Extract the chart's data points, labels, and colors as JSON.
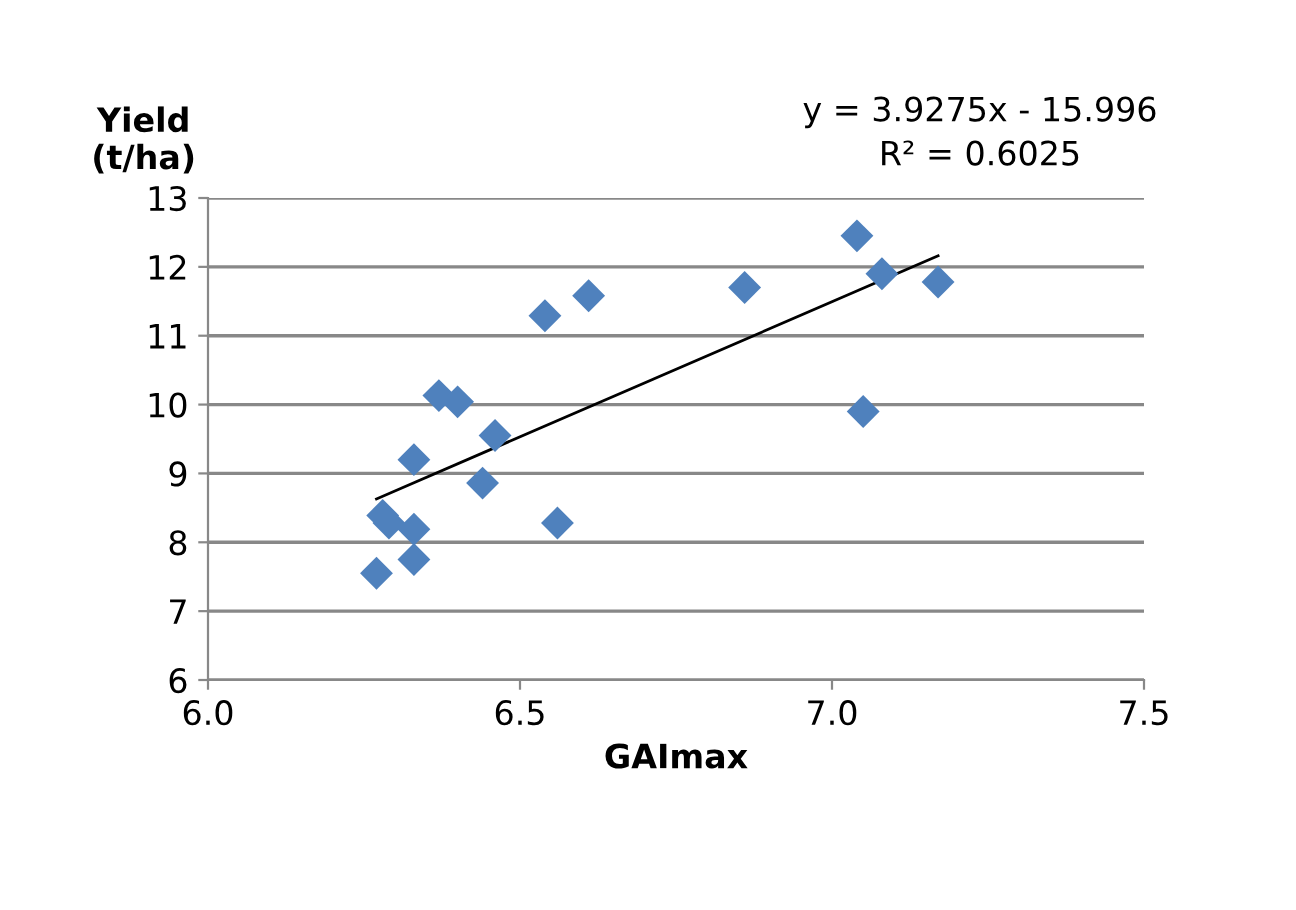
{
  "chart_data": {
    "type": "scatter",
    "xlabel": "GAImax",
    "ylabel": "Yield\n(t/ha)",
    "xlim": [
      6.0,
      7.5
    ],
    "xticks": [
      {
        "value": 6.0,
        "label": "6.0"
      },
      {
        "value": 6.5,
        "label": "6.5"
      },
      {
        "value": 7.0,
        "label": "7.0"
      },
      {
        "value": 7.5,
        "label": "7.5"
      }
    ],
    "ylim": [
      6,
      13
    ],
    "yticks": [
      6,
      7,
      8,
      9,
      10,
      11,
      12,
      13
    ],
    "grid": "y",
    "marker": "diamond",
    "series": [
      {
        "color": "#4f81bd",
        "x": [
          6.27,
          6.28,
          6.29,
          6.33,
          6.33,
          6.33,
          6.37,
          6.4,
          6.44,
          6.46,
          6.54,
          6.56,
          6.61,
          6.86,
          7.04,
          7.05,
          7.08,
          7.17
        ],
        "values": [
          7.55,
          8.39,
          8.28,
          8.19,
          7.75,
          9.2,
          10.13,
          10.04,
          8.86,
          9.55,
          11.29,
          8.28,
          11.58,
          11.7,
          12.45,
          9.9,
          11.9,
          11.78
        ]
      },
      {
        "type": "line",
        "color": "#000000",
        "marker": "none",
        "x": [
          6.27,
          7.17
        ],
        "values": [
          8.63,
          12.16
        ]
      }
    ],
    "annotations": [
      "y = 3.9275x - 15.996",
      "R² = 0.6025"
    ]
  }
}
